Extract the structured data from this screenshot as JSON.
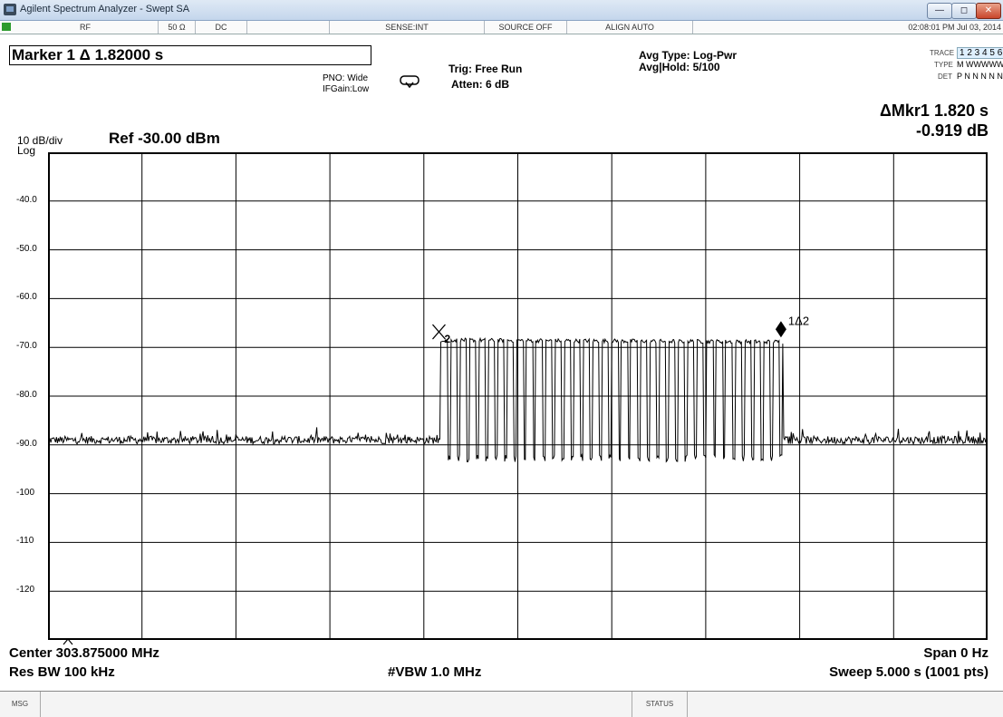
{
  "window": {
    "title": "Agilent Spectrum Analyzer - Swept SA",
    "buttons": {
      "minimize": "—",
      "maximize": "◻",
      "close": "✕"
    }
  },
  "status_bar": {
    "lxi": "LXI",
    "rf": "RF",
    "impedance": "50 Ω",
    "coupling": "DC",
    "sense": "SENSE:INT",
    "source": "SOURCE OFF",
    "align": "ALIGN AUTO",
    "datetime": "02:08:01 PM Jul 03, 2014"
  },
  "header": {
    "marker_label": "Marker 1 Δ 1.82000 s",
    "pno": "PNO: Wide",
    "ifgain": "IFGain:Low",
    "trig": "Trig: Free Run",
    "atten": "Atten: 6 dB",
    "avg_type": "Avg Type: Log-Pwr",
    "avg_hold": "Avg|Hold: 5/100",
    "trace_label": "TRACE",
    "trace_nums": "1 2 3 4 5 6",
    "type_label": "TYPE",
    "type_vals": "M WWWWW",
    "det_label": "DET",
    "det_vals": "P N N N N N",
    "delta_mkr": "ΔMkr1 1.820 s",
    "delta_val": "-0.919 dB",
    "scale": "10 dB/div",
    "log": "Log",
    "ref": "Ref -30.00 dBm"
  },
  "plot": {
    "y_ticks": [
      "-40.0",
      "-50.0",
      "-60.0",
      "-70.0",
      "-80.0",
      "-90.0",
      "-100",
      "-110",
      "-120"
    ],
    "marker1_label": "1Δ2",
    "marker2_label": "2"
  },
  "footer": {
    "center": "Center 303.875000 MHz",
    "span": "Span 0 Hz",
    "res_bw": "Res BW 100 kHz",
    "vbw": "#VBW 1.0 MHz",
    "sweep": "Sweep  5.000 s (1001 pts)"
  },
  "msg_bar": {
    "msg": "MSG",
    "status": "STATUS"
  },
  "colors": {
    "trace": "#000000",
    "grid": "#000000",
    "accent": "#3a7ad0"
  },
  "chart_data": {
    "type": "line",
    "x_range_s": [
      0,
      5
    ],
    "ylim": [
      -130,
      -30
    ],
    "noise_floor_db": -90,
    "burst_start_s": 2.09,
    "burst_end_s": 3.91,
    "burst_top_db": -68.5,
    "marker_delta_s": 1.82,
    "marker_delta_db": -0.919
  }
}
